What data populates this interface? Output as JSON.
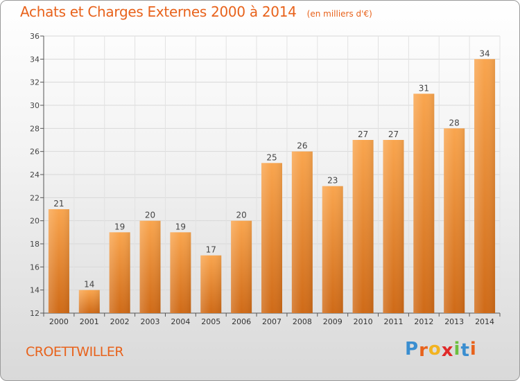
{
  "chart_data": {
    "type": "bar",
    "title": "Achats et Charges Externes 2000 à 2014",
    "subtitle": "(en milliers d'€)",
    "categories": [
      "2000",
      "2001",
      "2002",
      "2003",
      "2004",
      "2005",
      "2006",
      "2007",
      "2008",
      "2009",
      "2010",
      "2011",
      "2012",
      "2013",
      "2014"
    ],
    "values": [
      21,
      14,
      19,
      20,
      19,
      17,
      20,
      25,
      26,
      23,
      27,
      27,
      31,
      28,
      34
    ],
    "ylim": [
      12,
      36
    ],
    "yticks": [
      12,
      14,
      16,
      18,
      20,
      22,
      24,
      26,
      28,
      30,
      32,
      34,
      36
    ],
    "xlabel": "",
    "ylabel": "",
    "grid": true,
    "bar_color_top": "#f9a54e",
    "bar_color_bottom": "#cf6a17"
  },
  "footer": {
    "commune": "CROETTWILLER",
    "logo_letters": [
      "P",
      "r",
      "o",
      "x",
      "i",
      "t",
      "i"
    ],
    "logo_colors": [
      "#3a8ed0",
      "#e8621b",
      "#f2b320",
      "#e02a2a",
      "#6cbf3f",
      "#3a8ed0",
      "#e8621b"
    ]
  },
  "colors": {
    "accent": "#e8621b"
  }
}
